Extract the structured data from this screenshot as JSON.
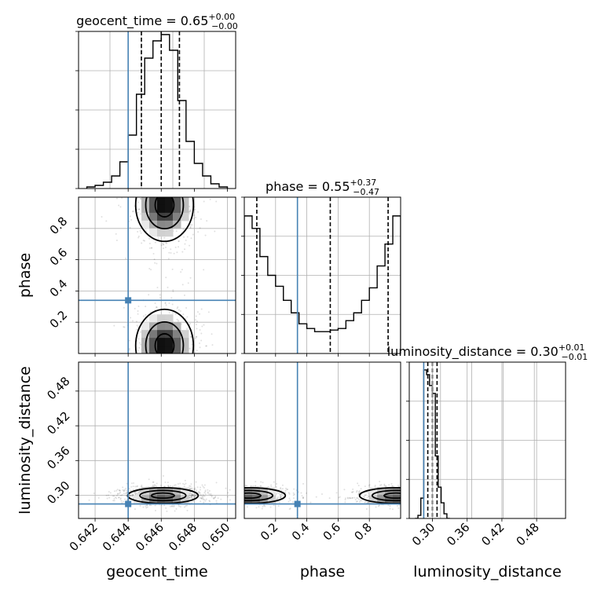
{
  "chart_data": {
    "type": "corner",
    "parameters": [
      "geocent_time",
      "phase",
      "luminosity_distance"
    ],
    "truths": {
      "geocent_time": 0.644,
      "phase": 0.34,
      "luminosity_distance": 0.285
    },
    "panels": [
      {
        "id": "hist-geocent_time",
        "type": "histogram",
        "parameter": "geocent_time",
        "title": {
          "label": "geocent_time",
          "eq": " = ",
          "value": "0.65",
          "plus": "+0.00",
          "minus": "−0.00"
        },
        "xlim": [
          0.641,
          0.6505
        ],
        "ylim": [
          0,
          1.0
        ],
        "bin_edges": [
          0.6415,
          0.642,
          0.6425,
          0.643,
          0.6435,
          0.644,
          0.6445,
          0.645,
          0.6455,
          0.646,
          0.6465,
          0.647,
          0.6475,
          0.648,
          0.6485,
          0.649,
          0.6495,
          0.65
        ],
        "counts": [
          0.01,
          0.02,
          0.04,
          0.08,
          0.17,
          0.34,
          0.6,
          0.83,
          0.94,
          0.98,
          0.88,
          0.56,
          0.3,
          0.16,
          0.08,
          0.03,
          0.01
        ],
        "quantiles": [
          0.6448,
          0.646,
          0.6471
        ],
        "grid": true
      },
      {
        "id": "hist-phase",
        "type": "histogram",
        "parameter": "phase",
        "title": {
          "label": "phase",
          "eq": " = ",
          "value": "0.55",
          "plus": "+0.37",
          "minus": "−0.47"
        },
        "xlim": [
          0.0,
          1.0
        ],
        "ylim": [
          0,
          1.0
        ],
        "bin_edges": [
          0.0,
          0.05,
          0.1,
          0.15,
          0.2,
          0.25,
          0.3,
          0.35,
          0.4,
          0.45,
          0.5,
          0.55,
          0.6,
          0.65,
          0.7,
          0.75,
          0.8,
          0.85,
          0.9,
          0.95,
          1.0
        ],
        "counts": [
          0.88,
          0.8,
          0.62,
          0.5,
          0.43,
          0.34,
          0.26,
          0.19,
          0.16,
          0.14,
          0.14,
          0.15,
          0.16,
          0.21,
          0.26,
          0.34,
          0.42,
          0.56,
          0.7,
          0.88
        ],
        "quantiles": [
          0.08,
          0.55,
          0.92
        ],
        "grid": true
      },
      {
        "id": "hist-luminosity_distance",
        "type": "histogram",
        "parameter": "luminosity_distance",
        "title": {
          "label": "luminosity_distance",
          "eq": " = ",
          "value": "0.30",
          "plus": "+0.01",
          "minus": "−0.01"
        },
        "xlim": [
          0.26,
          0.53
        ],
        "ylim": [
          0,
          1.0
        ],
        "bin_edges": [
          0.27,
          0.275,
          0.28,
          0.285,
          0.29,
          0.295,
          0.3,
          0.305,
          0.31,
          0.315,
          0.32,
          0.325,
          0.33
        ],
        "counts": [
          0.0,
          0.02,
          0.13,
          0.95,
          0.92,
          0.85,
          0.8,
          0.4,
          0.2,
          0.1,
          0.03,
          0.0
        ],
        "quantiles": [
          0.292,
          0.3,
          0.308
        ],
        "grid": true
      },
      {
        "id": "2d-geocent-phase",
        "type": "density2d",
        "x": "geocent_time",
        "y": "phase",
        "xlim": [
          0.641,
          0.6505
        ],
        "ylim": [
          0.0,
          1.0
        ],
        "yticks": [
          0.2,
          0.4,
          0.6,
          0.8
        ],
        "ytick_labels": [
          "0.2",
          "0.4",
          "0.6",
          "0.8"
        ],
        "ylabel": "phase",
        "blobs": [
          {
            "cx": 0.6462,
            "cy": 0.95,
            "sx": 0.0009,
            "sy": 0.12,
            "w": 1.0
          },
          {
            "cx": 0.6462,
            "cy": 0.05,
            "sx": 0.0009,
            "sy": 0.12,
            "w": 1.0
          }
        ],
        "grid": true
      },
      {
        "id": "2d-geocent-dist",
        "type": "density2d",
        "x": "geocent_time",
        "y": "luminosity_distance",
        "xlim": [
          0.641,
          0.6505
        ],
        "ylim": [
          0.26,
          0.53
        ],
        "xticks": [
          0.642,
          0.644,
          0.646,
          0.648,
          0.65
        ],
        "xtick_labels": [
          "0.642",
          "0.644",
          "0.646",
          "0.648",
          "0.650"
        ],
        "yticks": [
          0.3,
          0.36,
          0.42,
          0.48
        ],
        "ytick_labels": [
          "0.30",
          "0.36",
          "0.42",
          "0.48"
        ],
        "xlabel": "geocent_time",
        "ylabel": "luminosity_distance",
        "blobs": [
          {
            "cx": 0.6461,
            "cy": 0.2995,
            "sx": 0.0011,
            "sy": 0.007,
            "w": 1.0
          }
        ],
        "grid": true
      },
      {
        "id": "2d-phase-dist",
        "type": "density2d",
        "x": "phase",
        "y": "luminosity_distance",
        "xlim": [
          0.0,
          1.0
        ],
        "ylim": [
          0.26,
          0.53
        ],
        "xticks": [
          0.2,
          0.4,
          0.6,
          0.8
        ],
        "xtick_labels": [
          "0.2",
          "0.4",
          "0.6",
          "0.8"
        ],
        "xlabel": "phase",
        "blobs": [
          {
            "cx": 0.03,
            "cy": 0.2995,
            "sx": 0.12,
            "sy": 0.007,
            "w": 1.0
          },
          {
            "cx": 0.97,
            "cy": 0.2995,
            "sx": 0.12,
            "sy": 0.007,
            "w": 1.0
          }
        ],
        "grid": true
      }
    ],
    "hist_x_ticks": {
      "luminosity_distance": {
        "ticks": [
          0.3,
          0.36,
          0.42,
          0.48
        ],
        "labels": [
          "0.30",
          "0.36",
          "0.42",
          "0.48"
        ],
        "xlabel": "luminosity_distance"
      }
    },
    "colors": {
      "truth": "#4682b4",
      "hist": "#000000",
      "grid": "#b0b0b0",
      "density_dark": "#000000"
    }
  }
}
